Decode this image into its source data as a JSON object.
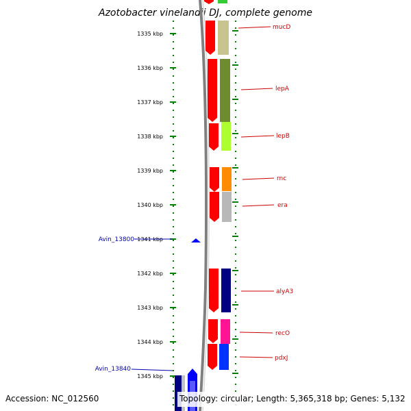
{
  "title": "Azotobacter vinelandii DJ, complete genome",
  "accession_text": "Accession: NC_012560",
  "summary_text": "Topology: circular; Length: 5,365,318 bp; Genes: 5,132",
  "kbp_labels": [
    "1335 kbp",
    "1336 kbp",
    "1337 kbp",
    "1338 kbp",
    "1339 kbp",
    "1340 kbp",
    "1341 kbp",
    "1342 kbp",
    "1343 kbp",
    "1344 kbp",
    "1345 kbp"
  ],
  "genes": [
    {
      "name": "mucD",
      "color": "#c8c490"
    },
    {
      "name": "lepA",
      "color": "#6e8b2f"
    },
    {
      "name": "lepB",
      "color": "#adff2f"
    },
    {
      "name": "rnc",
      "color": "#ff8c00"
    },
    {
      "name": "era",
      "color": "#b8b8b8"
    },
    {
      "name": "alyA3",
      "color": "#000080"
    },
    {
      "name": "recO",
      "color": "#ff1493"
    },
    {
      "name": "pdxJ",
      "color": "#0033ff"
    }
  ],
  "locus_tags": [
    "Avin_13800",
    "Avin_13840"
  ],
  "colors": {
    "strand_arrow": "#ff0000",
    "tick": "#008000",
    "backbone": "#808080",
    "gene_label": "#cc0000",
    "locus_label": "#0000aa",
    "locus_marker": "#0000ff"
  }
}
